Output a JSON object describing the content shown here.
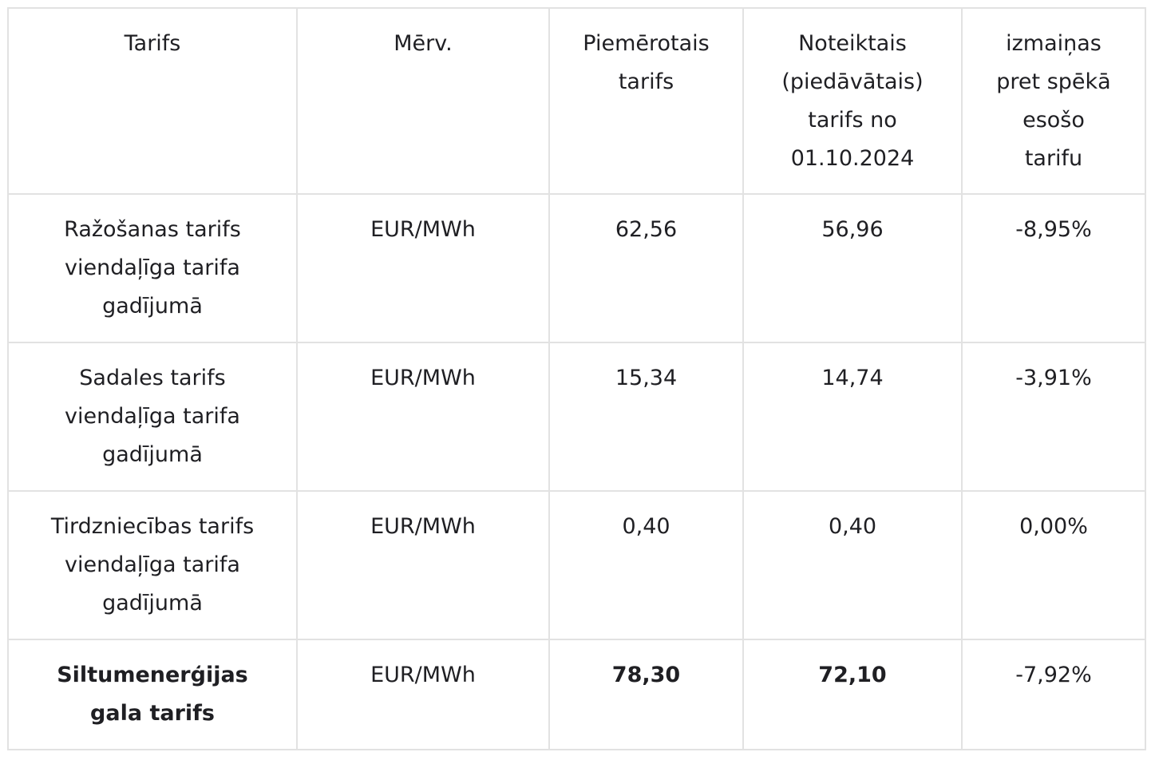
{
  "table": {
    "headers": [
      "Tarifs",
      "Mērv.",
      "Piemērotais tarifs",
      "Noteiktais (piedāvātais) tarifs no 01.10.2024",
      "izmaiņas pret spēkā esošo tarifu"
    ],
    "rows": [
      {
        "name": "Ražošanas tarifs viendaļīga tarifa gadījumā",
        "unit": "EUR/MWh",
        "current": "62,56",
        "proposed": "56,96",
        "change": "-8,95%"
      },
      {
        "name": "Sadales tarifs viendaļīga tarifa gadījumā",
        "unit": "EUR/MWh",
        "current": "15,34",
        "proposed": "14,74",
        "change": "-3,91%"
      },
      {
        "name": "Tirdzniecības tarifs viendaļīga tarifa gadījumā",
        "unit": "EUR/MWh",
        "current": "0,40",
        "proposed": "0,40",
        "change": "0,00%"
      }
    ],
    "total": {
      "name": "Siltumenerģijas gala tarifs",
      "unit": "EUR/MWh",
      "current": "78,30",
      "proposed": "72,10",
      "change": "-7,92%"
    }
  }
}
